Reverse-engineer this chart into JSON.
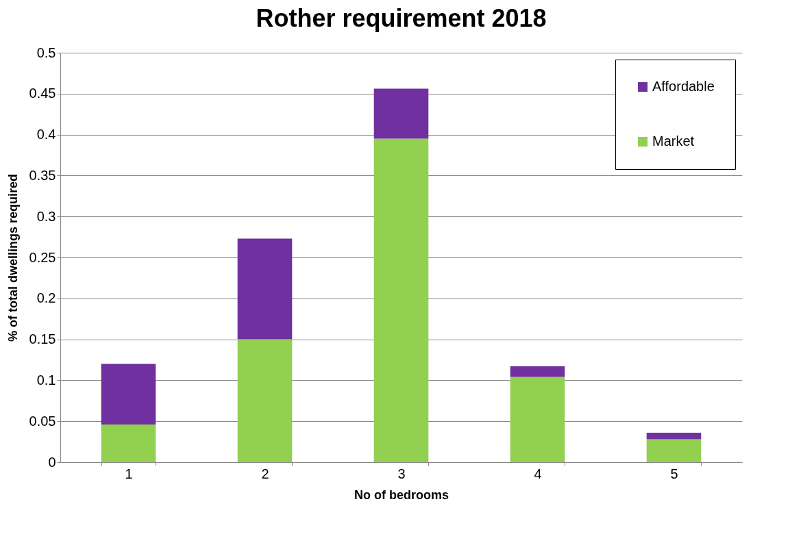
{
  "chart_data": {
    "type": "bar",
    "title": "Rother requirement 2018",
    "xlabel": "No of bedrooms",
    "ylabel": "% of total dwellings required",
    "categories": [
      "1",
      "2",
      "3",
      "4",
      "5"
    ],
    "stacked": true,
    "series": [
      {
        "name": "Market",
        "color": "#92d050",
        "values": [
          0.046,
          0.15,
          0.395,
          0.104,
          0.028
        ]
      },
      {
        "name": "Affordable",
        "color": "#7030a0",
        "values": [
          0.074,
          0.123,
          0.061,
          0.013,
          0.008
        ]
      }
    ],
    "ylim": [
      0,
      0.5
    ],
    "yticks": [
      0,
      0.05,
      0.1,
      0.15,
      0.2,
      0.25,
      0.3,
      0.35,
      0.4,
      0.45,
      0.5
    ],
    "grid": "y",
    "legend": "top right"
  }
}
